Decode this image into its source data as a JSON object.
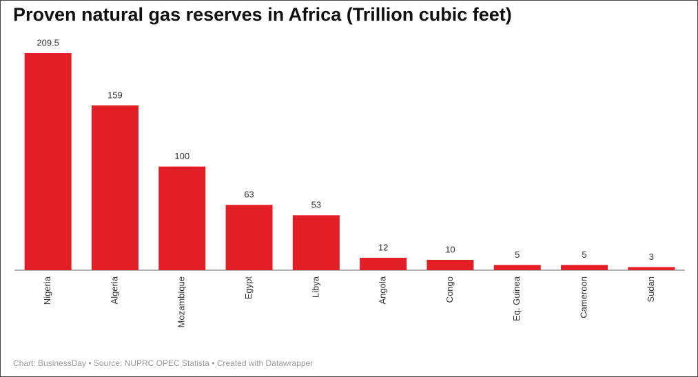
{
  "chart_data": {
    "type": "bar",
    "title": "Proven natural gas reserves in Africa (Trillion cubic feet)",
    "categories": [
      "Nigeria",
      "Algeria",
      "Mozambique",
      "Egypt",
      "Libya",
      "Angola",
      "Congo",
      "Eq. Guinea",
      "Cameroon",
      "Sudan"
    ],
    "values": [
      209.5,
      159,
      100,
      63,
      53,
      12,
      10,
      5,
      5,
      3
    ],
    "color": "#e31e24",
    "source": "Chart: BusinessDay • Source: NUPRC OPEC Statista • Created with Datawrapper"
  }
}
